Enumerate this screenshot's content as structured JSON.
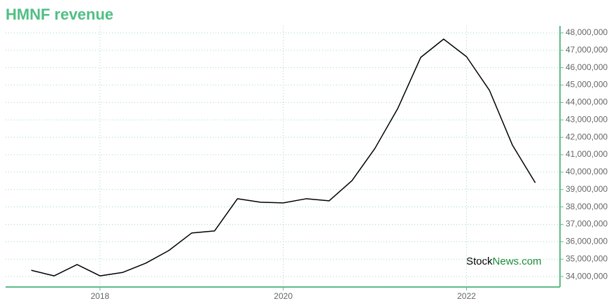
{
  "chart_data": {
    "type": "line",
    "title": "HMNF revenue",
    "x": [
      2017.25,
      2017.5,
      2017.75,
      2018,
      2018.25,
      2018.5,
      2018.75,
      2019,
      2019.25,
      2019.5,
      2019.75,
      2020,
      2020.25,
      2020.5,
      2020.75,
      2021,
      2021.25,
      2021.5,
      2021.75,
      2022,
      2022.25,
      2022.5,
      2022.75
    ],
    "series": [
      {
        "color": "#000000",
        "values": [
          34360000,
          34040000,
          34690000,
          34040000,
          34240000,
          34770000,
          35490000,
          36500000,
          36620000,
          38470000,
          38270000,
          38230000,
          38470000,
          38350000,
          39510000,
          41360000,
          43660000,
          46590000,
          47640000,
          46630000,
          44700000,
          41560000,
          39390000
        ]
      }
    ],
    "xlim": [
      2016.97,
      2023.02
    ],
    "xticks": [
      2018,
      2020,
      2022
    ],
    "ylim": [
      33400000,
      48400000
    ],
    "yticks": [
      {
        "value": 34000000,
        "label": "34,000,000"
      },
      {
        "value": 35000000,
        "label": "35,000,000"
      },
      {
        "value": 36000000,
        "label": "36,000,000"
      },
      {
        "value": 37000000,
        "label": "37,000,000"
      },
      {
        "value": 38000000,
        "label": "38,000,000"
      },
      {
        "value": 39000000,
        "label": "39,000,000"
      },
      {
        "value": 40000000,
        "label": "40,000,000"
      },
      {
        "value": 41000000,
        "label": "41,000,000"
      },
      {
        "value": 42000000,
        "label": "42,000,000"
      },
      {
        "value": 43000000,
        "label": "43,000,000"
      },
      {
        "value": 44000000,
        "label": "44,000,000"
      },
      {
        "value": 45000000,
        "label": "45,000,000"
      },
      {
        "value": 46000000,
        "label": "46,000,000"
      },
      {
        "value": 47000000,
        "label": "47,000,000"
      },
      {
        "value": 48000000,
        "label": "48,000,000"
      }
    ],
    "grid": true,
    "watermark": {
      "first": "Stock",
      "second": "News.com"
    }
  }
}
